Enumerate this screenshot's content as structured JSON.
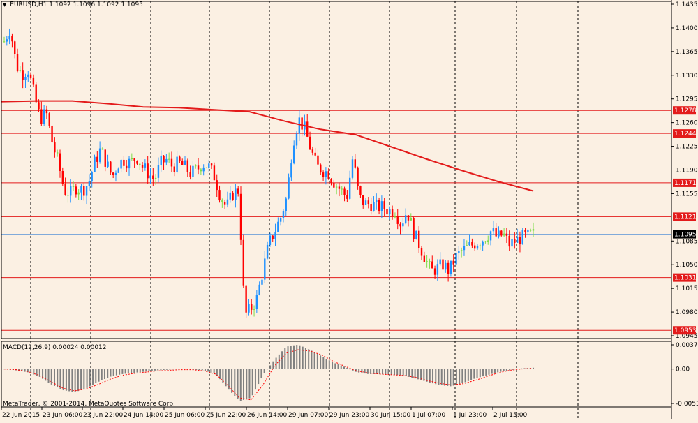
{
  "window": {
    "title_symbol": "EURUSD,H1",
    "title_ohlc": "1.1092 1.1096 1.1092 1.1095",
    "title_arrow": "▼"
  },
  "colors": {
    "background": "#fbf0e3",
    "grid": "#000000",
    "bull": "#1e90ff",
    "bear": "#ff0000",
    "neutral": "#7ddc4a",
    "ma": "#e31b1b",
    "level_line": "#e31b1b",
    "current_price_line": "#6fa0d8",
    "macd_hist": "#808080",
    "macd_signal": "#ff0000"
  },
  "price_axis": {
    "ticks": [
      "1.1435",
      "1.1400",
      "1.1365",
      "1.1330",
      "1.1295",
      "1.1260",
      "1.1225",
      "1.1190",
      "1.1155",
      "1.1085",
      "1.1050",
      "1.1015",
      "1.0980",
      "1.0945"
    ],
    "current_price": "1.1095",
    "levels": [
      "1.1278",
      "1.1244",
      "1.1171",
      "1.1121",
      "1.1031",
      "1.0953"
    ]
  },
  "time_axis": {
    "labels": [
      "22 Jun 2015",
      "23 Jun 06:00",
      "23 Jun 22:00",
      "24 Jun 14:00",
      "25 Jun 06:00",
      "25 Jun 22:00",
      "26 Jun 14:00",
      "29 Jun 07:00",
      "29 Jun 23:00",
      "30 Jun 15:00",
      "1 Jul 07:00",
      "1 Jul 23:00",
      "2 Jul 15:00"
    ]
  },
  "macd": {
    "title": "MACD(12,26,9) 0.00024 0.00012",
    "ticks": [
      "0.00377",
      "0.00",
      "-0.00537"
    ]
  },
  "copyright": "MetaTrader, © 2001-2014, MetaQuotes Software Corp.",
  "chart_data": {
    "type": "candlestick",
    "symbol": "EURUSD",
    "timeframe": "H1",
    "ylim": [
      1.0945,
      1.1435
    ],
    "x_labels": [
      "22 Jun 2015",
      "23 Jun 06:00",
      "23 Jun 22:00",
      "24 Jun 14:00",
      "25 Jun 06:00",
      "25 Jun 22:00",
      "26 Jun 14:00",
      "29 Jun 07:00",
      "29 Jun 23:00",
      "30 Jun 15:00",
      "1 Jul 07:00",
      "1 Jul 23:00",
      "2 Jul 15:00"
    ],
    "close_path": [
      1.138,
      1.14,
      1.1345,
      1.1332,
      1.1338,
      1.13,
      1.1265,
      1.1275,
      1.123,
      1.12,
      1.116,
      1.1155,
      1.1165,
      1.116,
      1.117,
      1.12,
      1.122,
      1.12,
      1.118,
      1.12,
      1.1205,
      1.12,
      1.121,
      1.1195,
      1.1185,
      1.1175,
      1.12,
      1.1205,
      1.1195,
      1.12,
      1.1195,
      1.1185,
      1.119,
      1.12,
      1.1195,
      1.118,
      1.115,
      1.1135,
      1.1155,
      1.116,
      1.0975,
      1.0985,
      1.1,
      1.104,
      1.108,
      1.11,
      1.112,
      1.115,
      1.123,
      1.1265,
      1.125,
      1.122,
      1.1195,
      1.119,
      1.1185,
      1.117,
      1.116,
      1.115,
      1.121,
      1.115,
      1.114,
      1.114,
      1.1135,
      1.1135,
      1.113,
      1.113,
      1.111,
      1.113,
      1.11,
      1.108,
      1.106,
      1.104,
      1.1045,
      1.105,
      1.104,
      1.106,
      1.107,
      1.1075,
      1.108,
      1.1085,
      1.109,
      1.11,
      1.109,
      1.1095,
      1.108,
      1.1085,
      1.109,
      1.1092,
      1.1095
    ],
    "ma_path": [
      1.1291,
      1.1292,
      1.1292,
      1.1288,
      1.1283,
      1.1282,
      1.1279,
      1.1276,
      1.1262,
      1.125,
      1.1242,
      1.1224,
      1.1206,
      1.1189,
      1.1173,
      1.1159
    ],
    "levels": [
      1.1278,
      1.1244,
      1.1171,
      1.1121,
      1.1031,
      1.0953
    ],
    "current_price": 1.1095,
    "macd": {
      "ylim": [
        -0.00537,
        0.00377
      ],
      "value": 0.00024,
      "signal": 0.00012,
      "histogram_path": [
        0.0,
        -0.0002,
        -0.0005,
        -0.0012,
        -0.0024,
        -0.0033,
        -0.0036,
        -0.003,
        -0.002,
        -0.0012,
        -0.0008,
        -0.0006,
        -0.0004,
        -0.0002,
        -0.0001,
        0.0,
        -0.0001,
        -0.0002,
        -0.0008,
        -0.003,
        -0.005,
        -0.0045,
        -0.001,
        0.0015,
        0.0035,
        0.0038,
        0.003,
        0.002,
        0.001,
        0.0003,
        -0.0005,
        -0.0008,
        -0.0008,
        -0.0009,
        -0.001,
        -0.0015,
        -0.002,
        -0.0025,
        -0.0027,
        -0.0022,
        -0.0015,
        -0.001,
        -0.0005,
        -0.0002,
        0.0001,
        0.0002
      ],
      "signal_path": [
        0.0,
        -0.0001,
        -0.0004,
        -0.001,
        -0.002,
        -0.003,
        -0.0034,
        -0.0031,
        -0.0024,
        -0.0016,
        -0.001,
        -0.0007,
        -0.0005,
        -0.0003,
        -0.0002,
        -0.0001,
        -0.0001,
        -0.0003,
        -0.0008,
        -0.0025,
        -0.0045,
        -0.0048,
        -0.0025,
        0.0005,
        0.0025,
        0.003,
        0.0028,
        0.0022,
        0.0012,
        0.0004,
        -0.0003,
        -0.0006,
        -0.0008,
        -0.0009,
        -0.001,
        -0.0013,
        -0.0018,
        -0.0022,
        -0.0025,
        -0.0023,
        -0.0018,
        -0.0012,
        -0.0006,
        -0.0002,
        0.0,
        0.0001
      ]
    }
  }
}
